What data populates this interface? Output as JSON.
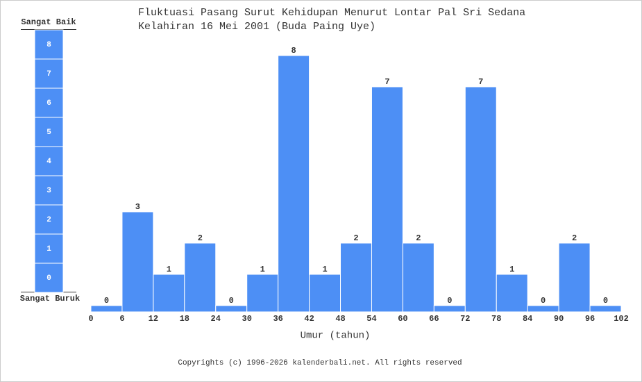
{
  "chart_data": {
    "type": "histogram",
    "title": "Fluktuasi Pasang Surut Kehidupan Menurut Lontar Pal Sri Sedana",
    "subtitle": "Kelahiran 16 Mei 2001 (Buda Paing Uye)",
    "x_label": "Umur (tahun)",
    "scale_top_label": "Sangat Baik",
    "scale_bottom_label": "Sangat Buruk",
    "bins": [
      0,
      6,
      12,
      18,
      24,
      30,
      36,
      42,
      48,
      54,
      60,
      66,
      72,
      78,
      84,
      90,
      96,
      102
    ],
    "values": [
      0,
      3,
      1,
      2,
      0,
      1,
      8,
      1,
      2,
      7,
      2,
      0,
      7,
      1,
      0,
      2,
      0
    ],
    "color": "#4d8ff5",
    "xlim": [
      0,
      102
    ],
    "xticks": [
      0,
      6,
      12,
      18,
      24,
      30,
      36,
      42,
      48,
      54,
      60,
      66,
      72,
      78,
      84,
      90,
      96,
      102
    ],
    "ylim": [
      -0.2,
      8.8
    ],
    "yticks": [
      0,
      1,
      2,
      3,
      4,
      5,
      6,
      7,
      8
    ],
    "footer": "Copyrights (c) 1996-2026 kalenderbali.net. All rights reserved"
  }
}
